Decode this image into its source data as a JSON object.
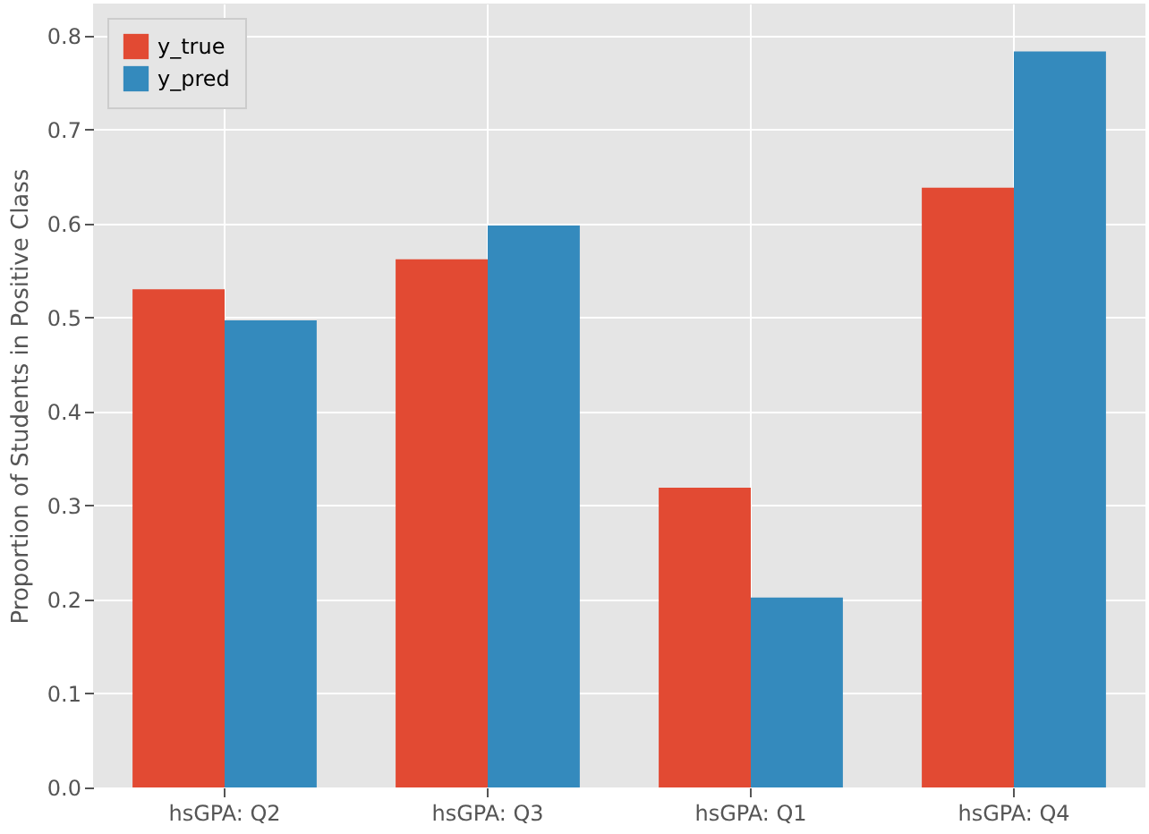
{
  "chart_data": {
    "type": "bar",
    "ylabel": "Proportion of Students in Positive Class",
    "categories": [
      "hsGPA: Q2",
      "hsGPA: Q3",
      "hsGPA: Q1",
      "hsGPA: Q4"
    ],
    "series": [
      {
        "name": "y_true",
        "color": "#e24a33",
        "values": [
          0.53,
          0.562,
          0.319,
          0.638
        ]
      },
      {
        "name": "y_pred",
        "color": "#348abd",
        "values": [
          0.497,
          0.598,
          0.202,
          0.783
        ]
      }
    ],
    "ylim": [
      0,
      0.834
    ],
    "yticks": [
      {
        "value": 0,
        "label": "0.0"
      },
      0.1,
      0.2,
      0.3,
      0.4,
      0.5,
      0.6,
      0.7,
      0.8
    ],
    "grid": true,
    "legend": "top left"
  }
}
